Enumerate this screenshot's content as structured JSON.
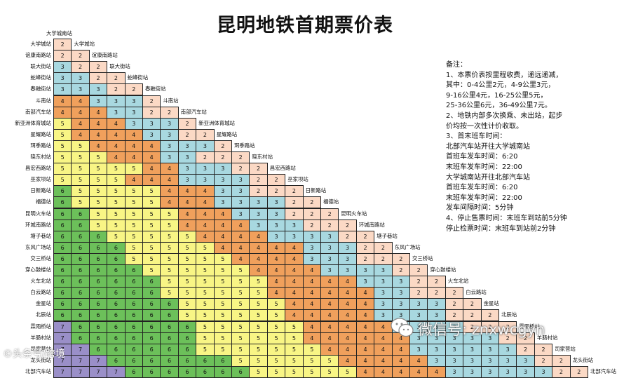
{
  "title": "昆明地铁首期票价表",
  "colors": {
    "1": "#ffffff",
    "2": "#fbd9c5",
    "3": "#a8d8e0",
    "4": "#f0a05c",
    "5": "#f8f585",
    "6": "#6cc05a",
    "7": "#9a8fc8"
  },
  "table": {
    "diagonal_labels": [
      "大学城南站",
      "大学城站",
      "谊康南路站",
      "联大街站",
      "蛇峰街站",
      "春融街站",
      "斗南站",
      "南部汽车站",
      "新亚洲体育城站",
      "星耀路站",
      "珥季路站",
      "晓东村站",
      "昌宏西路站",
      "巫家坝站",
      "日新路站",
      "福德站",
      "昆明火车站",
      "环城南路站",
      "塘子巷站",
      "东风广场站",
      "交三桥站",
      "穿心鼓楼站",
      "火车北站",
      "白云路站",
      "金星站",
      "北辰站",
      "霖雨桥站",
      "羊肠村站",
      "司家营站",
      "龙头街站",
      "北部汽车站"
    ],
    "row_labels": [
      "大学城站",
      "谊康南路站",
      "联大街站",
      "蛇峰街站",
      "春融街站",
      "斗南站",
      "南部汽车站",
      "新亚洲体育城站",
      "星耀路站",
      "珥季路站",
      "晓东村站",
      "昌宏西路站",
      "巫家坝站",
      "日新路站",
      "福德站",
      "昆明火车站",
      "环城南路站",
      "塘子巷站",
      "东风广场站",
      "交三桥站",
      "穿心鼓楼站",
      "火车北站",
      "白云路站",
      "金星站",
      "北辰站",
      "霖雨桥站",
      "羊肠村站",
      "司家营站",
      "龙头街站",
      "北部汽车站"
    ],
    "rows": [
      "2",
      "22",
      "322",
      "3322",
      "33322",
      "443332",
      "4443322",
      "54443332",
      "544443322",
      "5544443332",
      "55544433222",
      "555554433322",
      "5555444333322",
      "65555544433222",
      "655555444333322",
      "6655555444333222",
      "66555554444333222",
      "666555554444333322",
      "6666555554444433322",
      "66665555554444333222",
      "666665555554444333322",
      "6666665555554444433322",
      "66666655555544444433222",
      "666666655555544444333322",
      "6666666555555444443333222",
      "76666666555555444443333222",
      "766666665555554444443333322",
      "7766666655555554444433333322",
      "77766666665555554444433333322",
      "777766666665555554444433333322"
    ]
  },
  "notes": {
    "heading": "备注：",
    "lines": [
      "1、本票价表按里程收费，递远递减，",
      "    其中：0-4公里2元，4-9公里3元，",
      "    9-16公里4元，16-25公里5元，",
      "    25-36公里6元，36-49公里7元。",
      "2、地铁内部多次换乘、未出站，起步",
      "    价均按一次性计价收取。",
      "3、首末班车时间：",
      "    北部汽车站开往大学城南站",
      "    首班车发车时间：6:20",
      "    末班车发车时间：22:00",
      "    大学城南站开往北部汽车站",
      "    首班车发车时间：6:20",
      "    末班车发车时间：22:00",
      "    发车间隔时间：5分钟",
      "4、停止售票时间：末班车到站前5分钟",
      "    停止检票时间：末班车到站前2分钟"
    ]
  },
  "watermarks": {
    "left": "©头条号/跨境",
    "right": "微信号: znxwcgyn"
  },
  "icons": {
    "wechat": "wechat-logo-icon"
  }
}
